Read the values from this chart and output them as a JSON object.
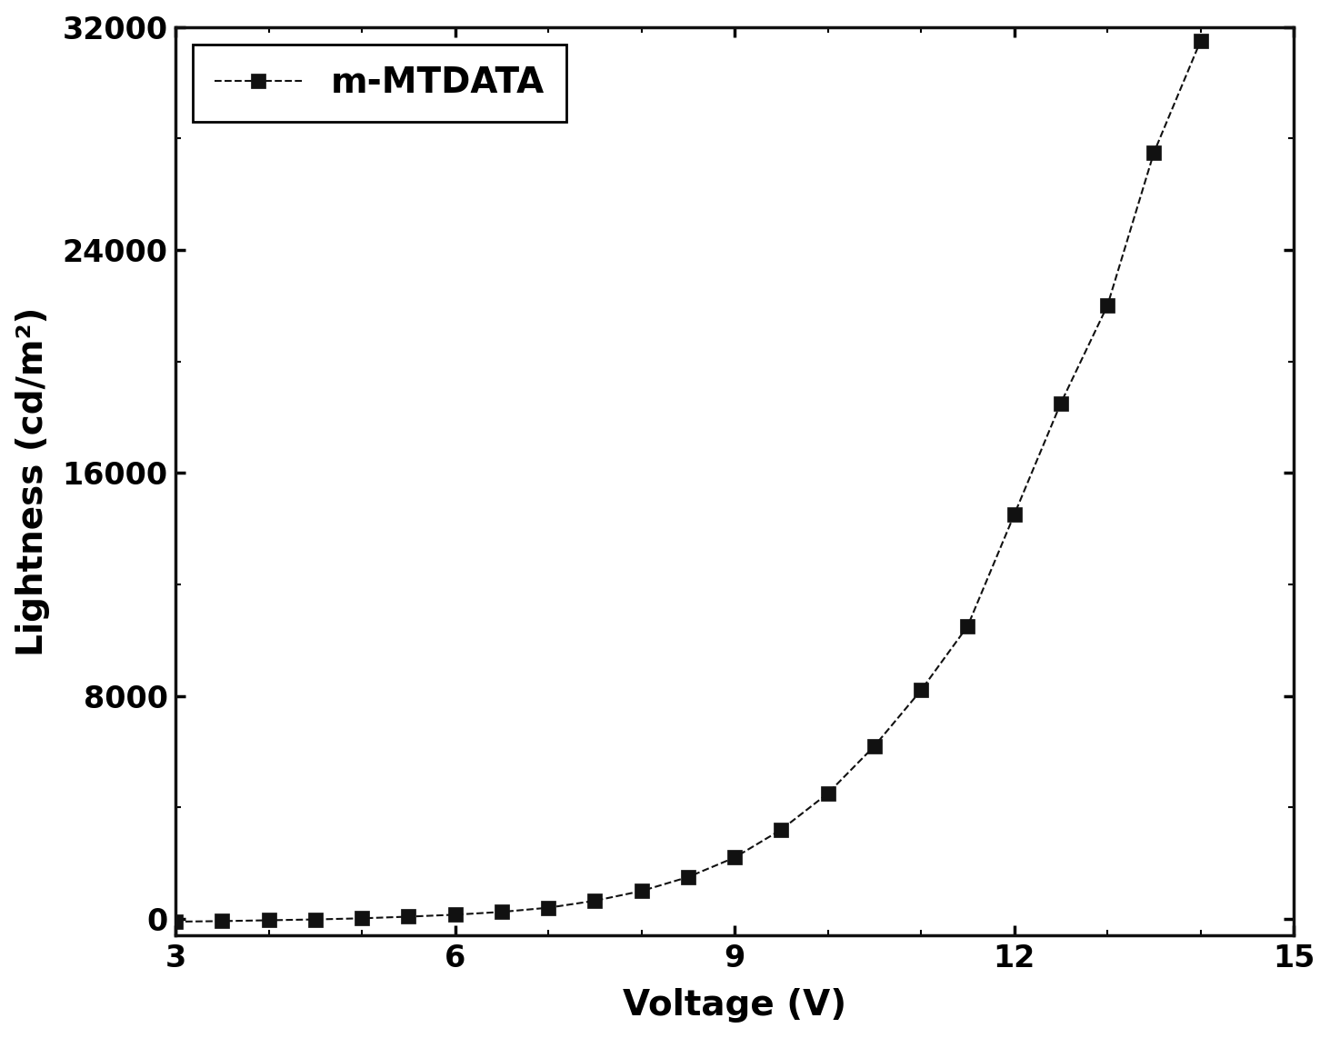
{
  "x_data": [
    3.0,
    3.5,
    4.0,
    4.5,
    5.0,
    5.5,
    6.0,
    6.5,
    7.0,
    7.5,
    8.0,
    8.5,
    9.0,
    9.5,
    10.0,
    10.5,
    11.0,
    11.5,
    12.0,
    12.5,
    13.0,
    13.5,
    14.0
  ],
  "y_data": [
    -100,
    -80,
    -50,
    -20,
    20,
    80,
    150,
    250,
    400,
    650,
    1000,
    1500,
    2200,
    3200,
    4500,
    6200,
    8200,
    10500,
    14500,
    18500,
    22000,
    27500,
    31500
  ],
  "xlabel": "Voltage (V)",
  "ylabel": "Lightness (cd/m²)",
  "legend_label": "m-MTDATA",
  "line_color": "#111111",
  "marker": "s",
  "marker_color": "#111111",
  "marker_size": 11,
  "line_style": "--",
  "line_width": 1.5,
  "xlim": [
    3,
    15
  ],
  "ylim": [
    -600,
    32000
  ],
  "xticks": [
    3,
    6,
    9,
    12,
    15
  ],
  "yticks": [
    0,
    8000,
    16000,
    24000,
    32000
  ],
  "xlabel_fontsize": 28,
  "ylabel_fontsize": 28,
  "tick_fontsize": 24,
  "legend_fontsize": 28,
  "background_color": "#ffffff",
  "axes_linewidth": 2.5,
  "fig_width": 14.63,
  "fig_height": 11.42,
  "legend_loc": "upper left"
}
